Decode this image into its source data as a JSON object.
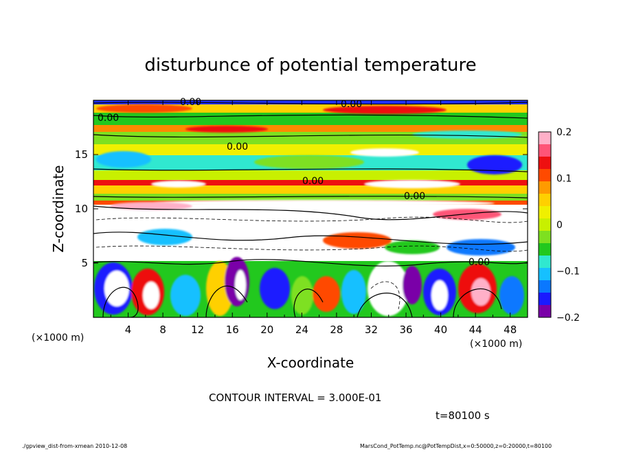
{
  "chart_data": {
    "type": "heatmap",
    "title": "disturbunce of potential temperature",
    "xlabel": "X-coordinate",
    "ylabel": "Z-coordinate",
    "x_unit_left": "(×1000 m)",
    "x_unit_right": "(×1000 m)",
    "xlim": [
      0,
      50
    ],
    "ylim": [
      0,
      20
    ],
    "x_ticks": [
      4,
      8,
      12,
      16,
      20,
      24,
      28,
      32,
      36,
      40,
      44,
      48
    ],
    "y_ticks": [
      5,
      10,
      15
    ],
    "colorbar": {
      "ticks": [
        0.2,
        0.1,
        0,
        -0.1,
        -0.2
      ],
      "tick_labels": [
        "0.2",
        "0.1",
        "0",
        "−0.1",
        "−0.2"
      ],
      "range": [
        -0.2,
        0.2
      ],
      "colors": [
        "#7a00a8",
        "#1a1aff",
        "#0a78ff",
        "#16c0ff",
        "#30e8d0",
        "#22c81e",
        "#7ee020",
        "#c8f000",
        "#f0f000",
        "#ffd000",
        "#ff9a00",
        "#ff4a00",
        "#ee1010",
        "#ff5577",
        "#ffb0c8"
      ]
    },
    "contour_labels": [
      "0.00",
      "0.00",
      "0.00",
      "0.00",
      "0.00",
      "0.00",
      "0.00"
    ],
    "contour_interval_text": "CONTOUR INTERVAL = 3.000E-01",
    "time_text": "t=80100 s"
  },
  "footer": {
    "left": "./gpview_dist-from-xmean 2010-12-08",
    "right": "MarsCond_PotTemp.nc@PotTempDist,x=0:50000,z=0:20000,t=80100"
  }
}
